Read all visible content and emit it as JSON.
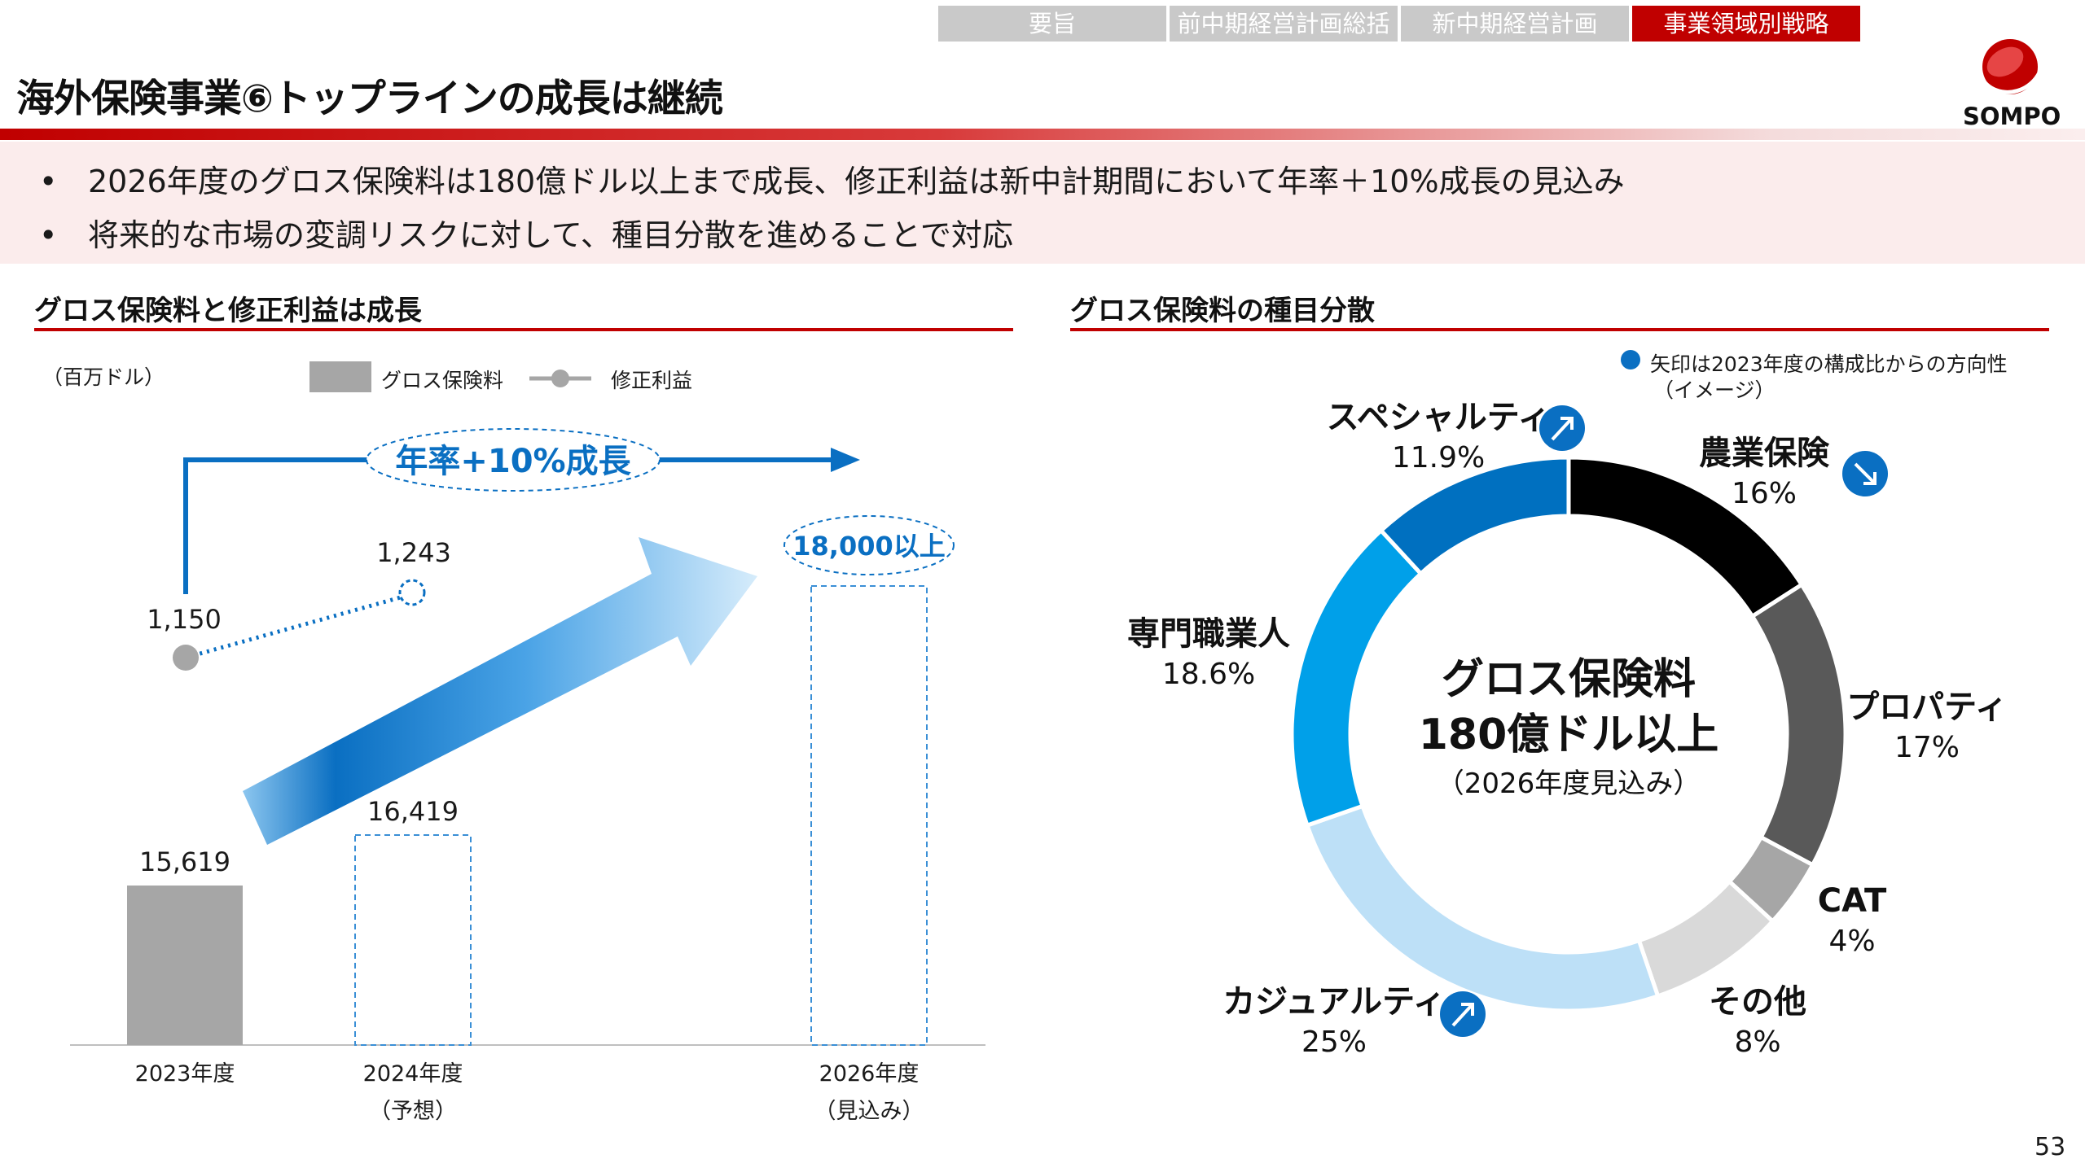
{
  "nav": {
    "tabs": [
      "要旨",
      "前中期経営計画総括",
      "新中期経営計画",
      "事業領域別戦略"
    ],
    "active_index": 3
  },
  "header": {
    "title": "海外保険事業⑥トップラインの成長は継続",
    "logo_text": "SOMPO"
  },
  "bullets": [
    "2026年度のグロス保険料は180億ドル以上まで成長、修正利益は新中計期間において年率＋10%成長の見込み",
    "将来的な市場の変調リスクに対して、種目分散を進めることで対応"
  ],
  "left": {
    "title": "グロス保険料と修正利益は成長",
    "unit": "（百万ドル）",
    "legend_bar": "グロス保険料",
    "legend_line": "修正利益",
    "growth_label": "年率+10%成長",
    "target_label": "18,000以上",
    "categories": [
      {
        "year": "2023年度",
        "sub": ""
      },
      {
        "year": "2024年度",
        "sub": "（予想）"
      },
      {
        "year": "2026年度",
        "sub": "（見込み）"
      }
    ],
    "bar_labels": [
      "15,619",
      "16,419"
    ],
    "profit_labels": [
      "1,150",
      "1,243"
    ]
  },
  "right": {
    "title": "グロス保険料の種目分散",
    "note_line1": "矢印は2023年度の構成比からの方向性",
    "note_line2": "（イメージ）",
    "center_line1": "グロス保険料",
    "center_line2": "180億ドル以上",
    "center_line3": "（2026年度見込み）",
    "segments": [
      {
        "name": "農業保険",
        "pct": "16%",
        "color": "#000000"
      },
      {
        "name": "プロパティ",
        "pct": "17%",
        "color": "#595959"
      },
      {
        "name": "CAT",
        "pct": "4%",
        "color": "#a6a6a6"
      },
      {
        "name": "その他",
        "pct": "8%",
        "color": "#d9d9d9"
      },
      {
        "name": "カジュアルティ",
        "pct": "25%",
        "color": "#bde0f7"
      },
      {
        "name": "専門職業人",
        "pct": "18.6%",
        "color": "#00a0e9"
      },
      {
        "name": "スペシャルティ",
        "pct": "11.9%",
        "color": "#0070c0"
      }
    ]
  },
  "chart_data": [
    {
      "type": "bar",
      "categories": [
        "2023年度",
        "2024年度",
        "2026年度"
      ],
      "series": [
        {
          "name": "グロス保険料",
          "values": [
            15619,
            16419,
            18000
          ]
        },
        {
          "name": "修正利益",
          "values": [
            1150,
            1243,
            null
          ]
        }
      ],
      "annotations": [
        "年率+10%成長",
        "18,000以上"
      ]
    },
    {
      "type": "pie",
      "labels": [
        "農業保険",
        "プロパティ",
        "CAT",
        "その他",
        "カジュアルティ",
        "専門職業人",
        "スペシャルティ"
      ],
      "values": [
        16,
        17,
        4,
        8,
        25,
        18.6,
        11.9
      ],
      "colors": [
        "#000000",
        "#595959",
        "#a6a6a6",
        "#d9d9d9",
        "#bde0f7",
        "#00a0e9",
        "#0070c0"
      ],
      "arrows": {
        "農業保険": "down",
        "カジュアルティ": "up",
        "スペシャルティ": "up"
      }
    }
  ],
  "page_number": "53"
}
